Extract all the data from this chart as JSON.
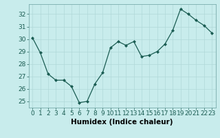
{
  "x": [
    0,
    1,
    2,
    3,
    4,
    5,
    6,
    7,
    8,
    9,
    10,
    11,
    12,
    13,
    14,
    15,
    16,
    17,
    18,
    19,
    20,
    21,
    22,
    23
  ],
  "y": [
    30.1,
    28.9,
    27.2,
    26.7,
    26.7,
    26.2,
    24.9,
    25.0,
    26.4,
    27.3,
    29.3,
    29.8,
    29.5,
    29.8,
    28.6,
    28.7,
    29.0,
    29.6,
    30.7,
    32.4,
    32.0,
    31.5,
    31.1,
    30.5
  ],
  "xlabel": "Humidex (Indice chaleur)",
  "ylim": [
    24.5,
    32.8
  ],
  "yticks": [
    25,
    26,
    27,
    28,
    29,
    30,
    31,
    32
  ],
  "xticks": [
    0,
    1,
    2,
    3,
    4,
    5,
    6,
    7,
    8,
    9,
    10,
    11,
    12,
    13,
    14,
    15,
    16,
    17,
    18,
    19,
    20,
    21,
    22,
    23
  ],
  "line_color": "#1a5c52",
  "marker_color": "#1a5c52",
  "bg_color": "#c8ecec",
  "grid_color": "#b0d8d8",
  "tick_fontsize": 6.5,
  "label_fontsize": 7.5
}
